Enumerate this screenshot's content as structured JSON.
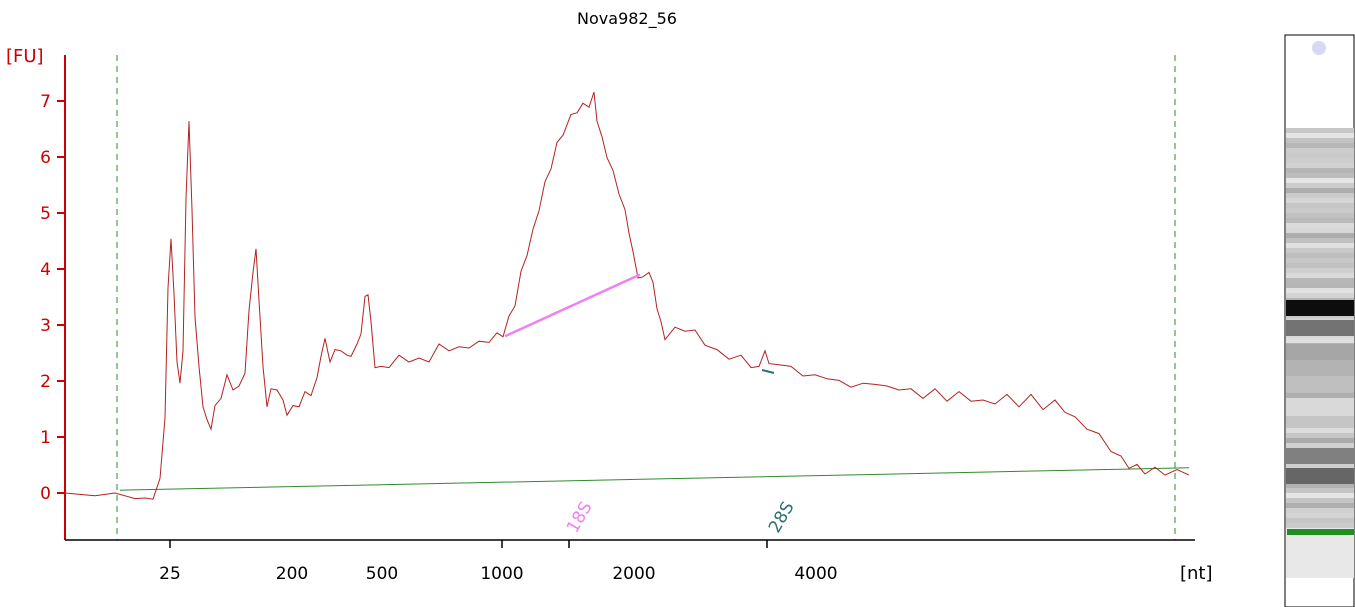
{
  "chart_data": {
    "type": "line",
    "title": "Nova982_56",
    "ylabel": "[FU]",
    "xlabel": "[nt]",
    "ylim": [
      -0.9,
      7.8
    ],
    "yticks": [
      "0",
      "1",
      "2",
      "3",
      "4",
      "5",
      "6",
      "7"
    ],
    "xticks": [
      "25",
      "200",
      "500",
      "1000",
      "2000",
      "4000"
    ],
    "markers": [
      {
        "name": "18S",
        "color": "#ee82ee"
      },
      {
        "name": "28S",
        "color": "#2f6f6f"
      }
    ],
    "trace_color": "#b22222",
    "baseline_color": "#2e8b2e",
    "axis_color": "#cc0000",
    "series": [
      {
        "values": [
          [
            0,
            0.0
          ],
          [
            30,
            -0.05
          ],
          [
            50,
            0.0
          ],
          [
            70,
            -0.1
          ],
          [
            80,
            -0.15
          ],
          [
            88,
            -0.05
          ],
          [
            95,
            0.2
          ],
          [
            100,
            1.4
          ],
          [
            103,
            3.6
          ],
          [
            106,
            4.6
          ],
          [
            109,
            3.5
          ],
          [
            112,
            2.4
          ],
          [
            115,
            1.9
          ],
          [
            118,
            2.6
          ],
          [
            121,
            5.2
          ],
          [
            124,
            6.7
          ],
          [
            127,
            5.0
          ],
          [
            130,
            3.2
          ],
          [
            134,
            2.2
          ],
          [
            138,
            1.6
          ],
          [
            142,
            1.25
          ],
          [
            146,
            1.2
          ],
          [
            150,
            1.5
          ],
          [
            156,
            1.75
          ],
          [
            162,
            2.05
          ],
          [
            168,
            1.9
          ],
          [
            174,
            1.85
          ],
          [
            180,
            2.2
          ],
          [
            184,
            3.2
          ],
          [
            188,
            4.0
          ],
          [
            191,
            4.3
          ],
          [
            194,
            3.5
          ],
          [
            198,
            2.2
          ],
          [
            202,
            1.6
          ],
          [
            206,
            1.8
          ],
          [
            212,
            1.9
          ],
          [
            218,
            1.6
          ],
          [
            222,
            1.45
          ],
          [
            228,
            1.5
          ],
          [
            234,
            1.6
          ],
          [
            240,
            1.75
          ],
          [
            246,
            1.8
          ],
          [
            252,
            2.0
          ],
          [
            256,
            2.5
          ],
          [
            260,
            2.7
          ],
          [
            265,
            2.4
          ],
          [
            270,
            2.5
          ],
          [
            276,
            2.6
          ],
          [
            282,
            2.4
          ],
          [
            286,
            2.5
          ],
          [
            292,
            2.6
          ],
          [
            296,
            2.9
          ],
          [
            300,
            3.45
          ],
          [
            303,
            3.6
          ],
          [
            306,
            3.0
          ],
          [
            310,
            2.3
          ],
          [
            316,
            2.2
          ],
          [
            324,
            2.3
          ],
          [
            334,
            2.4
          ],
          [
            344,
            2.4
          ],
          [
            354,
            2.35
          ],
          [
            364,
            2.4
          ],
          [
            374,
            2.6
          ],
          [
            384,
            2.6
          ],
          [
            394,
            2.55
          ],
          [
            404,
            2.65
          ],
          [
            414,
            2.65
          ],
          [
            424,
            2.75
          ],
          [
            432,
            2.8
          ],
          [
            438,
            2.85
          ],
          [
            444,
            3.1
          ],
          [
            450,
            3.4
          ],
          [
            456,
            3.9
          ],
          [
            462,
            4.3
          ],
          [
            468,
            4.65
          ],
          [
            474,
            5.1
          ],
          [
            480,
            5.5
          ],
          [
            486,
            5.85
          ],
          [
            492,
            6.2
          ],
          [
            498,
            6.45
          ],
          [
            506,
            6.7
          ],
          [
            512,
            6.85
          ],
          [
            518,
            6.9
          ],
          [
            524,
            6.95
          ],
          [
            529,
            7.1
          ],
          [
            532,
            6.7
          ],
          [
            537,
            6.3
          ],
          [
            542,
            6.05
          ],
          [
            548,
            5.7
          ],
          [
            554,
            5.4
          ],
          [
            560,
            5.0
          ],
          [
            564,
            4.7
          ],
          [
            568,
            4.25
          ],
          [
            573,
            3.9
          ],
          [
            578,
            3.8
          ],
          [
            584,
            4.0
          ],
          [
            588,
            3.7
          ],
          [
            592,
            3.35
          ],
          [
            596,
            3.0
          ],
          [
            600,
            2.8
          ],
          [
            610,
            2.9
          ],
          [
            620,
            2.95
          ],
          [
            630,
            2.85
          ],
          [
            640,
            2.7
          ],
          [
            652,
            2.5
          ],
          [
            664,
            2.45
          ],
          [
            676,
            2.4
          ],
          [
            686,
            2.3
          ],
          [
            694,
            2.2
          ],
          [
            700,
            2.6
          ],
          [
            704,
            2.25
          ],
          [
            714,
            2.35
          ],
          [
            726,
            2.2
          ],
          [
            738,
            2.15
          ],
          [
            750,
            2.05
          ],
          [
            762,
            2.1
          ],
          [
            774,
            1.95
          ],
          [
            786,
            1.95
          ],
          [
            798,
            1.9
          ],
          [
            810,
            2.0
          ],
          [
            822,
            1.85
          ],
          [
            834,
            1.9
          ],
          [
            846,
            1.8
          ],
          [
            858,
            1.75
          ],
          [
            870,
            1.8
          ],
          [
            882,
            1.7
          ],
          [
            894,
            1.75
          ],
          [
            906,
            1.7
          ],
          [
            918,
            1.6
          ],
          [
            930,
            1.65
          ],
          [
            942,
            1.7
          ],
          [
            954,
            1.6
          ],
          [
            966,
            1.7
          ],
          [
            978,
            1.55
          ],
          [
            990,
            1.6
          ],
          [
            1000,
            1.5
          ],
          [
            1010,
            1.3
          ],
          [
            1022,
            1.2
          ],
          [
            1034,
            1.0
          ],
          [
            1046,
            0.8
          ],
          [
            1056,
            0.6
          ],
          [
            1064,
            0.5
          ],
          [
            1072,
            0.45
          ],
          [
            1080,
            0.4
          ],
          [
            1090,
            0.4
          ],
          [
            1100,
            0.38
          ],
          [
            1112,
            0.36
          ],
          [
            1124,
            0.38
          ]
        ]
      }
    ],
    "baseline": [
      [
        55,
        0.05
      ],
      [
        1124,
        0.45
      ]
    ],
    "peak_18S_chord": [
      [
        440,
        2.8
      ],
      [
        575,
        3.9
      ]
    ],
    "gel_bands": [
      {
        "pos": 0.45,
        "shade": 0.95
      },
      {
        "pos": 0.5,
        "shade": 0.55
      },
      {
        "pos": 0.56,
        "shade": 0.35
      },
      {
        "pos": 0.6,
        "shade": 0.3
      },
      {
        "pos": 0.64,
        "shade": 0.25
      },
      {
        "pos": 0.7,
        "shade": 0.15
      },
      {
        "pos": 0.82,
        "shade": 0.5
      },
      {
        "pos": 0.87,
        "shade": 0.6
      }
    ]
  }
}
